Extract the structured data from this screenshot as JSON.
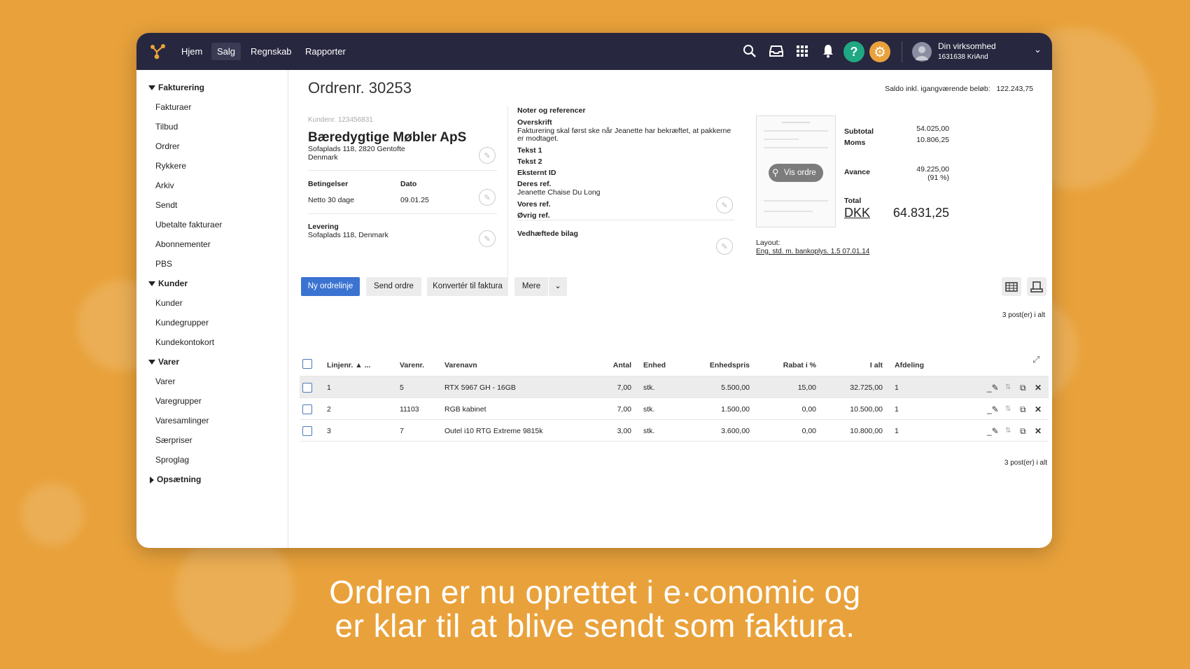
{
  "colors": {
    "background": "#E9A23B",
    "nav": "#27273F",
    "primary": "#3B73D1",
    "help": "#1FA882",
    "settings": "#E9A23B"
  },
  "nav": {
    "items": [
      "Hjem",
      "Salg",
      "Regnskab",
      "Rapporter"
    ],
    "active": "Salg",
    "company": "Din virksomhed",
    "account": "1631638 KriAnd",
    "icons": [
      "search-icon",
      "inbox-icon",
      "apps-grid-icon",
      "bell-icon",
      "help-icon",
      "gear-icon",
      "avatar",
      "chevron-down-icon"
    ]
  },
  "sidebar": {
    "sections": [
      {
        "label": "Fakturering",
        "expanded": true,
        "items": [
          "Fakturaer",
          "Tilbud",
          "Ordrer",
          "Rykkere",
          "Arkiv",
          "Sendt",
          "Ubetalte fakturaer",
          "Abonnementer",
          "PBS"
        ]
      },
      {
        "label": "Kunder",
        "expanded": true,
        "items": [
          "Kunder",
          "Kundegrupper",
          "Kundekontokort"
        ]
      },
      {
        "label": "Varer",
        "expanded": true,
        "items": [
          "Varer",
          "Varegrupper",
          "Varesamlinger",
          "Særpriser",
          "Sproglag"
        ]
      },
      {
        "label": "Opsætning",
        "expanded": false,
        "items": []
      }
    ]
  },
  "order": {
    "title": "Ordrenr. 30253",
    "saldo_label": "Saldo inkl. igangværende beløb:",
    "saldo_value": "122.243,75",
    "customer_no": "Kundenr. 123456831",
    "customer_name": "Bæredygtige Møbler ApS",
    "address1": "Sofaplads 118, 2820 Gentofte",
    "address2": "Denmark",
    "terms_label": "Betingelser",
    "terms_value": "Netto 30 dage",
    "date_label": "Dato",
    "date_value": "09.01.25",
    "delivery_label": "Levering",
    "delivery_value": "Sofaplads 118, Denmark"
  },
  "notes": {
    "heading": "Noter og referencer",
    "overskrift_label": "Overskrift",
    "overskrift_value": "Fakturering skal først ske når Jeanette har bekræftet, at pakkerne",
    "overskrift_value2": "er modtaget.",
    "tekst1": "Tekst 1",
    "tekst2": "Tekst 2",
    "ekstern": "Eksternt ID",
    "deres_label": "Deres ref.",
    "deres_value": "Jeanette Chaise Du Long",
    "vores": "Vores ref.",
    "ovrig": "Øvrig ref.",
    "attachments": "Vedhæftede bilag"
  },
  "preview": {
    "button": "Vis ordre",
    "layout_label": "Layout:",
    "layout_value": "Eng. std. m. bankoplys. 1.5 07.01.14"
  },
  "totals": {
    "subtotal_label": "Subtotal",
    "subtotal": "54.025,00",
    "moms_label": "Moms",
    "moms": "10.806,25",
    "avance_label": "Avance",
    "avance": "49.225,00",
    "avance_pct": "(91 %)",
    "total_label": "Total",
    "currency": "DKK",
    "total": "64.831,25"
  },
  "toolbar": {
    "new_line": "Ny ordrelinje",
    "send": "Send ordre",
    "convert": "Konvertér til faktura",
    "more": "Mere"
  },
  "table": {
    "count": "3 post(er) i alt",
    "headers": {
      "line": "Linjenr. ▲ ...",
      "itemno": "Varenr.",
      "name": "Varenavn",
      "qty": "Antal",
      "unit": "Enhed",
      "price": "Enhedspris",
      "discount": "Rabat i %",
      "total": "I alt",
      "dept": "Afdeling"
    },
    "rows": [
      {
        "line": "1",
        "itemno": "5",
        "name": "RTX 5967 GH - 16GB",
        "qty": "7,00",
        "unit": "stk.",
        "price": "5.500,00",
        "discount": "15,00",
        "total": "32.725,00",
        "dept": "1"
      },
      {
        "line": "2",
        "itemno": "11103",
        "name": "RGB kabinet",
        "qty": "7,00",
        "unit": "stk.",
        "price": "1.500,00",
        "discount": "0,00",
        "total": "10.500,00",
        "dept": "1"
      },
      {
        "line": "3",
        "itemno": "7",
        "name": "Outel i10 RTG Extreme 9815k",
        "qty": "3,00",
        "unit": "stk.",
        "price": "3.600,00",
        "discount": "0,00",
        "total": "10.800,00",
        "dept": "1"
      }
    ]
  },
  "caption": {
    "line1": "Ordren er nu oprettet i e·conomic og",
    "line2": "er klar til at blive sendt som faktura."
  }
}
